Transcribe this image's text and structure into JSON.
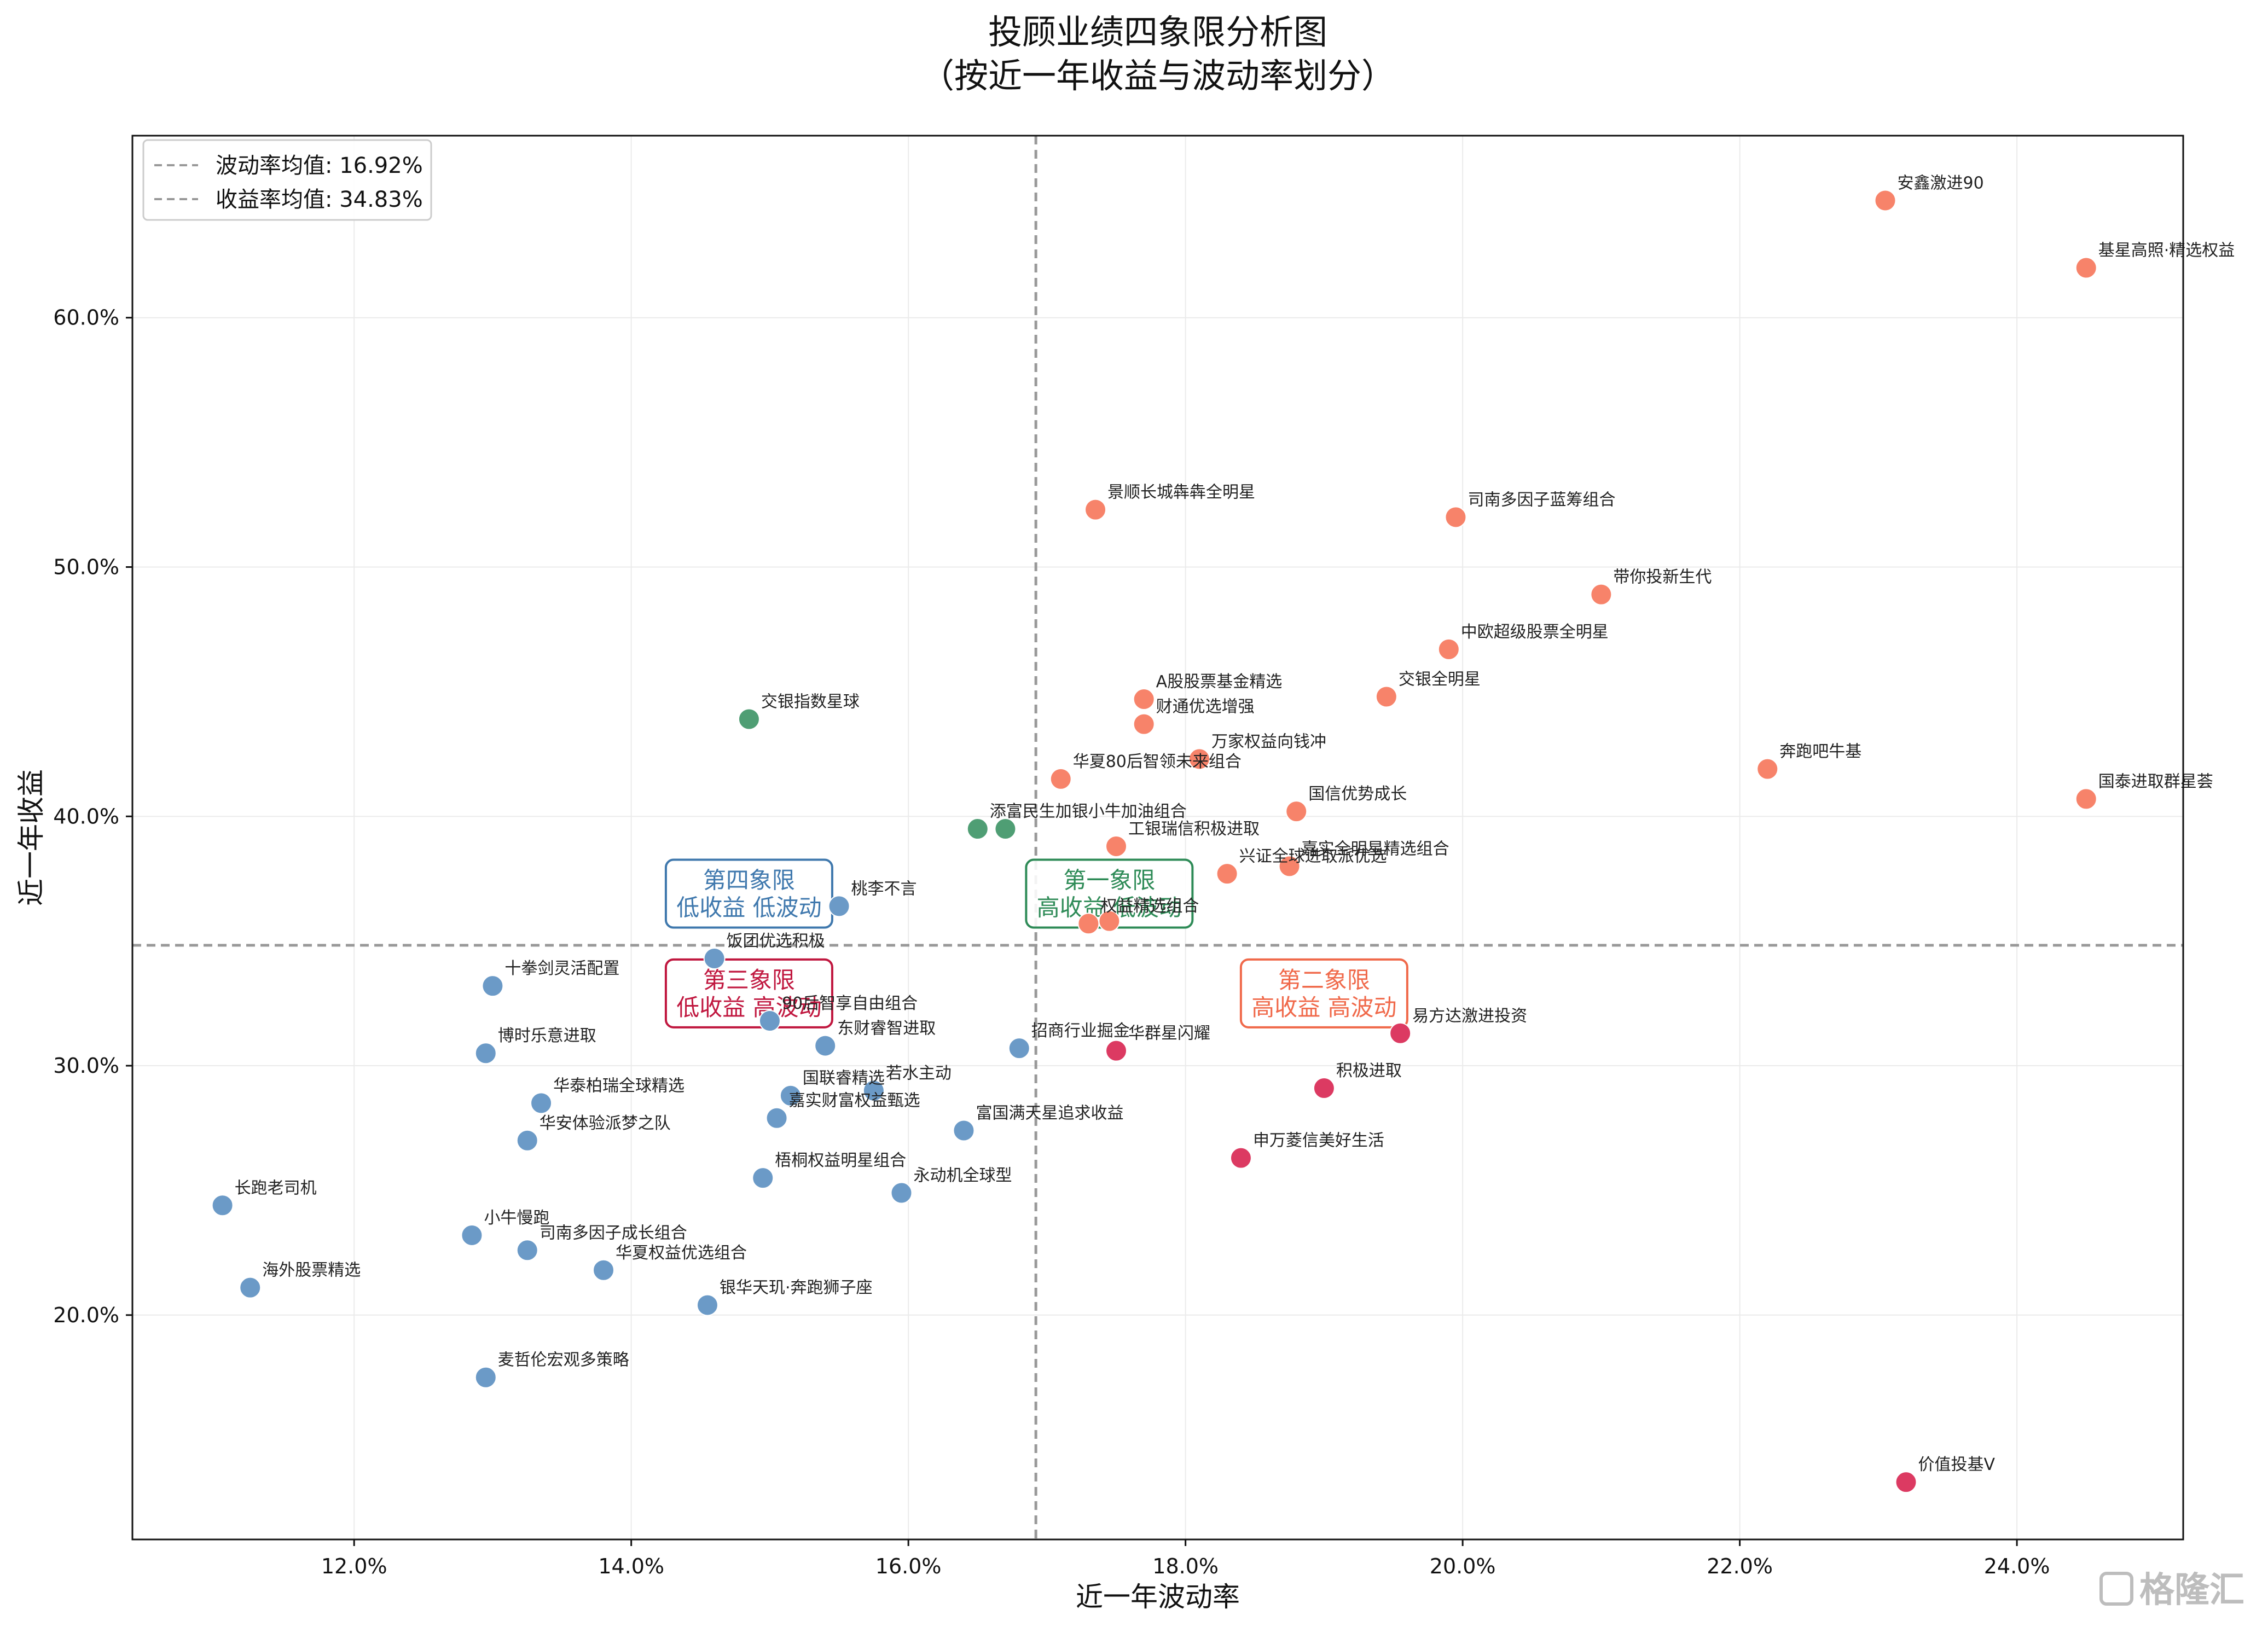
{
  "chart_data": {
    "type": "scatter",
    "title": [
      "投顾业绩四象限分析图",
      "（按近一年收益与波动率划分）"
    ],
    "xlabel": "近一年波动率",
    "ylabel": "近一年收益",
    "xlim": [
      10.4,
      25.2
    ],
    "ylim": [
      11.0,
      67.3
    ],
    "x_ticks": [
      12,
      14,
      16,
      18,
      20,
      22,
      24
    ],
    "y_ticks": [
      20,
      30,
      40,
      50,
      60
    ],
    "x_tick_labels": [
      "12.0%",
      "14.0%",
      "16.0%",
      "18.0%",
      "20.0%",
      "22.0%",
      "24.0%"
    ],
    "y_tick_labels": [
      "20.0%",
      "30.0%",
      "40.0%",
      "50.0%",
      "60.0%"
    ],
    "grid": true,
    "legend_position": "top-left",
    "reference_lines": [
      {
        "axis": "x",
        "value": 16.92,
        "label": "波动率均值: 16.92%"
      },
      {
        "axis": "y",
        "value": 34.83,
        "label": "收益率均值: 34.83%"
      }
    ],
    "quadrants": [
      {
        "name": "第一象限",
        "desc": "高收益 低波动",
        "color": "#2e8b57",
        "x": 17.45,
        "y": 36.9
      },
      {
        "name": "第二象限",
        "desc": "高收益 高波动",
        "color": "#f0694a",
        "x": 19.0,
        "y": 32.9
      },
      {
        "name": "第三象限",
        "desc": "低收益 高波动",
        "color": "#c0173f",
        "x": 14.85,
        "y": 32.9
      },
      {
        "name": "第四象限",
        "desc": "低收益 低波动",
        "color": "#3f78ad",
        "x": 14.85,
        "y": 36.9
      }
    ],
    "colors": {
      "q1": "#4f9e74",
      "q2": "#f7836a",
      "q3": "#dc3a62",
      "q4": "#6b9ac7"
    },
    "points": [
      {
        "name": "安鑫激进90",
        "x": 23.05,
        "y": 64.7,
        "q": "q2"
      },
      {
        "name": "基星高照·精选权益",
        "x": 24.5,
        "y": 62.0,
        "q": "q2"
      },
      {
        "name": "景顺长城犇犇全明星",
        "x": 17.35,
        "y": 52.3,
        "q": "q2"
      },
      {
        "name": "司南多因子蓝筹组合",
        "x": 19.95,
        "y": 52.0,
        "q": "q2"
      },
      {
        "name": "带你投新生代",
        "x": 21.0,
        "y": 48.9,
        "q": "q2"
      },
      {
        "name": "中欧超级股票全明星",
        "x": 19.9,
        "y": 46.7,
        "q": "q2"
      },
      {
        "name": "A股股票基金精选",
        "x": 17.7,
        "y": 44.7,
        "q": "q2"
      },
      {
        "name": "交银全明星",
        "x": 19.45,
        "y": 44.8,
        "q": "q2"
      },
      {
        "name": "财通优选增强",
        "x": 17.7,
        "y": 43.7,
        "q": "q2"
      },
      {
        "name": "万家权益向钱冲",
        "x": 18.1,
        "y": 42.3,
        "q": "q2"
      },
      {
        "name": "华夏80后智领未来组合",
        "x": 17.1,
        "y": 41.5,
        "q": "q2"
      },
      {
        "name": "奔跑吧牛基",
        "x": 22.2,
        "y": 41.9,
        "q": "q2"
      },
      {
        "name": "国泰进取群星荟",
        "x": 24.5,
        "y": 40.7,
        "q": "q2"
      },
      {
        "name": "国信优势成长",
        "x": 18.8,
        "y": 40.2,
        "q": "q2"
      },
      {
        "name": "交银指数星球",
        "x": 14.85,
        "y": 43.9,
        "q": "q1"
      },
      {
        "name": "添富民生加银小牛加油组合",
        "x": 16.5,
        "y": 39.5,
        "q": "q1"
      },
      {
        "name": "",
        "x": 16.7,
        "y": 39.5,
        "q": "q1"
      },
      {
        "name": "工银瑞信积极进取",
        "x": 17.5,
        "y": 38.8,
        "q": "q2"
      },
      {
        "name": "嘉实全明星精选组合",
        "x": 18.75,
        "y": 38.0,
        "q": "q2"
      },
      {
        "name": "兴证全球进取派优选",
        "x": 18.3,
        "y": 37.7,
        "q": "q2"
      },
      {
        "name": "权益精选组合",
        "x": 17.3,
        "y": 35.7,
        "q": "q2"
      },
      {
        "name": "",
        "x": 17.45,
        "y": 35.8,
        "q": "q2"
      },
      {
        "name": "桃李不言",
        "x": 15.5,
        "y": 36.4,
        "q": "q4"
      },
      {
        "name": "饭团优选积极",
        "x": 14.6,
        "y": 34.3,
        "q": "q4"
      },
      {
        "name": "十拳剑灵活配置",
        "x": 13.0,
        "y": 33.2,
        "q": "q4"
      },
      {
        "name": "90后智享自由组合",
        "x": 15.0,
        "y": 31.8,
        "q": "q4"
      },
      {
        "name": "博时乐意进取",
        "x": 12.95,
        "y": 30.5,
        "q": "q4"
      },
      {
        "name": "东财睿智进取",
        "x": 15.4,
        "y": 30.8,
        "q": "q4"
      },
      {
        "name": "招商行业掘金",
        "x": 16.8,
        "y": 30.7,
        "q": "q4"
      },
      {
        "name": "华群星闪耀",
        "x": 17.5,
        "y": 30.6,
        "q": "q3"
      },
      {
        "name": "易方达激进投资",
        "x": 19.55,
        "y": 31.3,
        "q": "q3"
      },
      {
        "name": "华泰柏瑞全球精选",
        "x": 13.35,
        "y": 28.5,
        "q": "q4"
      },
      {
        "name": "国联睿精选",
        "x": 15.15,
        "y": 28.8,
        "q": "q4"
      },
      {
        "name": "若水主动",
        "x": 15.75,
        "y": 29.0,
        "q": "q4"
      },
      {
        "name": "积极进取",
        "x": 19.0,
        "y": 29.1,
        "q": "q3"
      },
      {
        "name": "嘉实财富权益甄选",
        "x": 15.05,
        "y": 27.9,
        "q": "q4"
      },
      {
        "name": "华安体验派梦之队",
        "x": 13.25,
        "y": 27.0,
        "q": "q4"
      },
      {
        "name": "富国满天星追求收益",
        "x": 16.4,
        "y": 27.4,
        "q": "q4"
      },
      {
        "name": "申万菱信美好生活",
        "x": 18.4,
        "y": 26.3,
        "q": "q3"
      },
      {
        "name": "梧桐权益明星组合",
        "x": 14.95,
        "y": 25.5,
        "q": "q4"
      },
      {
        "name": "永动机全球型",
        "x": 15.95,
        "y": 24.9,
        "q": "q4"
      },
      {
        "name": "长跑老司机",
        "x": 11.05,
        "y": 24.4,
        "q": "q4"
      },
      {
        "name": "小牛慢跑",
        "x": 12.85,
        "y": 23.2,
        "q": "q4"
      },
      {
        "name": "司南多因子成长组合",
        "x": 13.25,
        "y": 22.6,
        "q": "q4"
      },
      {
        "name": "华夏权益优选组合",
        "x": 13.8,
        "y": 21.8,
        "q": "q4"
      },
      {
        "name": "海外股票精选",
        "x": 11.25,
        "y": 21.1,
        "q": "q4"
      },
      {
        "name": "银华天玑·奔跑狮子座",
        "x": 14.55,
        "y": 20.4,
        "q": "q4"
      },
      {
        "name": "麦哲伦宏观多策略",
        "x": 12.95,
        "y": 17.5,
        "q": "q4"
      },
      {
        "name": "价值投基V",
        "x": 23.2,
        "y": 13.3,
        "q": "q3"
      }
    ]
  },
  "watermark": "格隆汇"
}
